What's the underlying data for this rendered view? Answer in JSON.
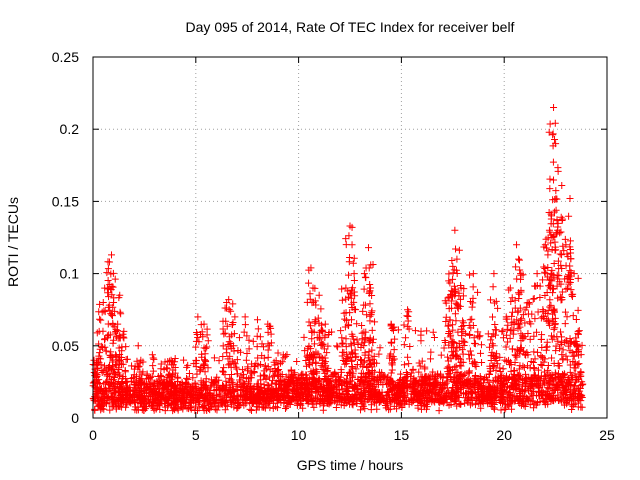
{
  "chart_data": {
    "type": "scatter",
    "title": "Day 095 of 2014, Rate Of TEC Index for receiver belf",
    "xlabel": "GPS time / hours",
    "ylabel": "ROTI / TECUs",
    "xlim": [
      0,
      25
    ],
    "ylim": [
      0,
      0.25
    ],
    "x_ticks": [
      0,
      5,
      10,
      15,
      20,
      25
    ],
    "x_tick_labels": [
      "0",
      "5",
      "10",
      "15",
      "20",
      "25"
    ],
    "y_ticks": [
      0,
      0.05,
      0.1,
      0.15,
      0.2,
      0.25
    ],
    "y_tick_labels": [
      "0",
      "0.05",
      "0.1",
      "0.15",
      "0.2",
      "0.25"
    ],
    "grid": true,
    "marker": "+",
    "color": "#ff0000",
    "data_x_range_hours": [
      0,
      23.8
    ],
    "series": [
      {
        "name": "ROTI",
        "description": "dense cloud of plus markers, mostly 0.005-0.03 TECU with bursts",
        "x": [
          0.05,
          0.3,
          0.5,
          0.7,
          0.8,
          0.9,
          1.0,
          1.2,
          1.3,
          1.5,
          2.2,
          3.8,
          4.0,
          5.1,
          5.4,
          6.5,
          6.6,
          6.9,
          7.4,
          8.0,
          8.5,
          9.0,
          10.6,
          10.7,
          11.0,
          11.3,
          12.3,
          12.5,
          12.6,
          12.7,
          13.2,
          13.4,
          13.5,
          14.5,
          15.3,
          17.3,
          17.5,
          17.6,
          17.7,
          17.9,
          18.5,
          19.5,
          20.1,
          20.3,
          20.6,
          20.7,
          20.8,
          21.2,
          21.6,
          22.0,
          22.2,
          22.3,
          22.4,
          22.5,
          22.6,
          22.8,
          23.0,
          23.2,
          23.4,
          23.6
        ],
        "y": [
          0.04,
          0.06,
          0.08,
          0.09,
          0.108,
          0.113,
          0.08,
          0.065,
          0.085,
          0.06,
          0.05,
          0.04,
          0.035,
          0.07,
          0.065,
          0.08,
          0.082,
          0.07,
          0.07,
          0.068,
          0.065,
          0.045,
          0.104,
          0.09,
          0.085,
          0.065,
          0.09,
          0.133,
          0.12,
          0.1,
          0.1,
          0.118,
          0.09,
          0.065,
          0.075,
          0.095,
          0.105,
          0.13,
          0.11,
          0.09,
          0.1,
          0.1,
          0.07,
          0.09,
          0.12,
          0.11,
          0.1,
          0.08,
          0.1,
          0.12,
          0.13,
          0.14,
          0.215,
          0.19,
          0.13,
          0.161,
          0.12,
          0.152,
          0.1,
          0.06
        ]
      }
    ]
  }
}
